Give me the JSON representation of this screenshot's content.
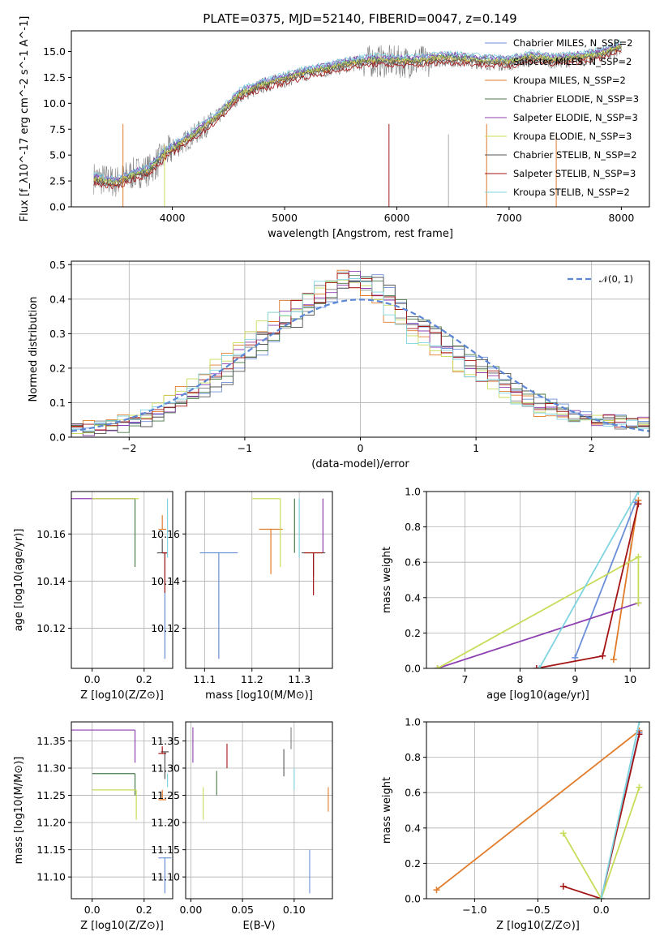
{
  "colors": {
    "obs": "#7f7f7f",
    "Chabrier MILES": "#6a8fd8",
    "Salpeter MILES": "#7f7f7f",
    "Kroupa MILES": "#e07b2a",
    "Chabrier ELODIE": "#4a7a4a",
    "Salpeter ELODIE": "#8e3fb0",
    "Kroupa ELODIE": "#c8dc5a",
    "Chabrier STELIB": "#555555",
    "Salpeter STELIB": "#a31515",
    "Kroupa STELIB": "#7fd4e0",
    "gauss": "#5b87d6"
  },
  "chart_data": [
    {
      "id": "spectrum",
      "type": "line",
      "title": "PLATE=0375, MJD=52140, FIBERID=0047, z=0.149",
      "xlabel": "wavelength [Angstrom, rest frame]",
      "ylabel": "Flux [f_λ10^-17 erg cm^-2 s^-1 A^-1]",
      "xlim": [
        3100,
        8250
      ],
      "ylim": [
        0,
        17
      ],
      "xticks": [
        4000,
        5000,
        6000,
        7000,
        8000
      ],
      "yticks": [
        0.0,
        2.5,
        5.0,
        7.5,
        10.0,
        12.5,
        15.0
      ],
      "continuum_points": {
        "x": [
          3300,
          3500,
          3650,
          3800,
          3950,
          4100,
          4250,
          4400,
          4600,
          4800,
          5000,
          5200,
          5400,
          5600,
          5800,
          6000,
          6200,
          6400,
          6600,
          6800,
          7000,
          7200,
          7400,
          7600,
          7800,
          8000
        ],
        "y": [
          2.8,
          2.4,
          3.2,
          3.6,
          5.2,
          6.2,
          7.4,
          8.6,
          10.8,
          11.7,
          12.3,
          12.9,
          13.3,
          13.8,
          14.1,
          14.0,
          14.0,
          14.3,
          14.2,
          14.0,
          13.9,
          14.4,
          14.1,
          14.3,
          14.6,
          15.4
        ]
      },
      "series": [
        {
          "name": "Chabrier MILES, N_SSP=2"
        },
        {
          "name": "Salpeter MILES, N_SSP=2"
        },
        {
          "name": "Kroupa MILES, N_SSP=2"
        },
        {
          "name": "Chabrier ELODIE, N_SSP=3"
        },
        {
          "name": "Salpeter ELODIE, N_SSP=3"
        },
        {
          "name": "Kroupa ELODIE, N_SSP=3"
        },
        {
          "name": "Chabrier STELIB, N_SSP=2"
        },
        {
          "name": "Salpeter STELIB, N_SSP=3"
        },
        {
          "name": "Kroupa STELIB, N_SSP=2"
        }
      ],
      "legend": "right"
    },
    {
      "id": "residuals",
      "type": "line",
      "xlabel": "(data-model)/error",
      "ylabel": "Normed distribution",
      "xlim": [
        -2.5,
        2.5
      ],
      "ylim": [
        0,
        0.51
      ],
      "xticks": [
        -2,
        -1,
        0,
        1,
        2
      ],
      "yticks": [
        0.0,
        0.1,
        0.2,
        0.3,
        0.4,
        0.5
      ],
      "gaussian_label": "𝒩(0, 1)",
      "bin_edges": [
        -2.5,
        2.5
      ],
      "histogram_profile": [
        0.02,
        0.02,
        0.03,
        0.03,
        0.04,
        0.05,
        0.06,
        0.07,
        0.09,
        0.11,
        0.13,
        0.15,
        0.17,
        0.2,
        0.23,
        0.26,
        0.29,
        0.32,
        0.35,
        0.37,
        0.39,
        0.41,
        0.43,
        0.45,
        0.46,
        0.45,
        0.43,
        0.4,
        0.36,
        0.33,
        0.3,
        0.28,
        0.26,
        0.23,
        0.21,
        0.19,
        0.17,
        0.15,
        0.13,
        0.11,
        0.1,
        0.08,
        0.07,
        0.06,
        0.06,
        0.05,
        0.05,
        0.04,
        0.04,
        0.04
      ],
      "legend": "top-right"
    },
    {
      "id": "age-z",
      "type": "scatter",
      "xlabel": "Z [log10(Z/Z⊙)]",
      "ylabel": "age  [log10(age/yr)]",
      "xlim": [
        -0.08,
        0.31
      ],
      "ylim": [
        10.103,
        10.178
      ],
      "xticks": [
        0.0,
        0.2
      ],
      "yticks": [
        10.12,
        10.14,
        10.16
      ],
      "points": [
        {
          "s": "Chabrier MILES",
          "x": 0.28,
          "y": 10.152,
          "xe": 0.01,
          "yend": 10.107
        },
        {
          "s": "Kroupa MILES",
          "x": 0.27,
          "y": 10.162,
          "xe": 0.015,
          "yend": 10.168
        },
        {
          "s": "Chabrier ELODIE",
          "x": 0.165,
          "y": 10.175,
          "xstart": 0.0,
          "yend": 10.146
        },
        {
          "s": "Salpeter ELODIE",
          "x": 0.165,
          "y": 10.175,
          "xstart": -0.08
        },
        {
          "s": "Kroupa ELODIE",
          "x": 0.18,
          "y": 10.175,
          "xstart": 0.0
        },
        {
          "s": "Chabrier STELIB",
          "x": 0.27,
          "y": 10.152,
          "xe": 0.02,
          "yend": 10.158
        },
        {
          "s": "Salpeter STELIB",
          "x": 0.28,
          "y": 10.152,
          "xe": 0.01,
          "yend": 10.135
        },
        {
          "s": "Kroupa STELIB",
          "x": 0.29,
          "y": 10.175,
          "yend": 10.15
        }
      ]
    },
    {
      "id": "age-mass",
      "type": "scatter",
      "xlabel": "mass [log10(M/M⊙)]",
      "xlim": [
        11.06,
        11.37
      ],
      "ylim": [
        10.103,
        10.178
      ],
      "xticks": [
        11.1,
        11.2,
        11.3
      ],
      "yticks": [
        10.12,
        10.14,
        10.16
      ],
      "points": [
        {
          "s": "Chabrier MILES",
          "x": 11.13,
          "y": 10.152,
          "xe": 0.04,
          "yend": 10.107
        },
        {
          "s": "Kroupa MILES",
          "x": 11.24,
          "y": 10.162,
          "xe": 0.025,
          "yend": 10.143
        },
        {
          "s": "Chabrier ELODIE",
          "x": 11.29,
          "y": 10.175,
          "yend": 10.152
        },
        {
          "s": "Salpeter ELODIE",
          "x": 11.35,
          "y": 10.175,
          "yend": 10.152
        },
        {
          "s": "Kroupa ELODIE",
          "x": 11.26,
          "y": 10.175,
          "xstart": 11.2,
          "yend": 10.146
        },
        {
          "s": "Chabrier STELIB",
          "x": 11.33,
          "y": 10.152,
          "xe": 0.025,
          "yend": 10.142
        },
        {
          "s": "Salpeter STELIB",
          "x": 11.33,
          "y": 10.152,
          "xe": 0.02,
          "yend": 10.134
        },
        {
          "s": "Kroupa STELIB",
          "x": 11.3,
          "y": 10.175,
          "yend": 10.15
        }
      ]
    },
    {
      "id": "weight-age",
      "type": "line",
      "xlabel": "age  [log10(age/yr)]",
      "ylabel": "mass weight",
      "xlim": [
        6.3,
        10.35
      ],
      "ylim": [
        0,
        1
      ],
      "xticks": [
        7,
        8,
        9,
        10
      ],
      "yticks": [
        0.0,
        0.2,
        0.4,
        0.6,
        0.8,
        1.0
      ],
      "series": [
        {
          "s": "Chabrier MILES",
          "x": [
            9.0,
            10.1
          ],
          "y": [
            0.06,
            0.94
          ]
        },
        {
          "s": "Kroupa MILES",
          "x": [
            9.7,
            10.15
          ],
          "y": [
            0.05,
            0.95
          ]
        },
        {
          "s": "Salpeter ELODIE",
          "x": [
            6.5,
            10.15
          ],
          "y": [
            0.0,
            0.37
          ]
        },
        {
          "s": "Kroupa ELODIE",
          "x": [
            6.5,
            10.15,
            10.15
          ],
          "y": [
            0.0,
            0.63,
            0.37
          ]
        },
        {
          "s": "Salpeter STELIB",
          "x": [
            8.3,
            9.5,
            10.15
          ],
          "y": [
            0.0,
            0.07,
            0.93
          ]
        },
        {
          "s": "Kroupa STELIB",
          "x": [
            8.35,
            10.15
          ],
          "y": [
            0.0,
            1.0
          ]
        }
      ]
    },
    {
      "id": "mass-z",
      "type": "scatter",
      "xlabel": "Z [log10(Z/Z⊙)]",
      "ylabel": "mass [log10(M/M⊙)]",
      "xlim": [
        -0.08,
        0.31
      ],
      "ylim": [
        11.06,
        11.385
      ],
      "xticks": [
        0.0,
        0.2
      ],
      "yticks": [
        11.1,
        11.15,
        11.2,
        11.25,
        11.3,
        11.35
      ],
      "points": [
        {
          "s": "Chabrier MILES",
          "x": 0.28,
          "y": 11.135,
          "xe": 0.025,
          "yend": 11.07
        },
        {
          "s": "Kroupa MILES",
          "x": 0.27,
          "y": 11.242,
          "xe": 0.015,
          "yend": 11.26
        },
        {
          "s": "Chabrier ELODIE",
          "x": 0.165,
          "y": 11.29,
          "xstart": 0.0,
          "yend": 11.25
        },
        {
          "s": "Salpeter ELODIE",
          "x": 0.165,
          "y": 11.37,
          "xstart": -0.08,
          "yend": 11.31
        },
        {
          "s": "Kroupa ELODIE",
          "x": 0.17,
          "y": 11.26,
          "xstart": 0.0,
          "yend": 11.205
        },
        {
          "s": "Chabrier STELIB",
          "x": 0.28,
          "y": 11.33,
          "xe": 0.015,
          "yend": 11.28
        },
        {
          "s": "Salpeter STELIB",
          "x": 0.27,
          "y": 11.327,
          "xe": 0.015,
          "yend": 11.34
        },
        {
          "s": "Kroupa STELIB",
          "x": 0.29,
          "y": 11.29,
          "yend": 11.265
        }
      ]
    },
    {
      "id": "mass-ebv",
      "type": "scatter",
      "xlabel": "E(B-V)",
      "xlim": [
        -0.005,
        0.137
      ],
      "ylim": [
        11.06,
        11.385
      ],
      "xticks": [
        0.0,
        0.05,
        0.1
      ],
      "yticks": [
        11.1,
        11.15,
        11.2,
        11.25,
        11.3,
        11.35
      ],
      "points": [
        {
          "s": "Chabrier MILES",
          "y0": 11.07,
          "y1": 11.15,
          "x": 0.115
        },
        {
          "s": "Kroupa MILES",
          "y0": 11.22,
          "y1": 11.265,
          "x": 0.133
        },
        {
          "s": "Chabrier ELODIE",
          "y0": 11.25,
          "y1": 11.295,
          "x": 0.025
        },
        {
          "s": "Salpeter ELODIE",
          "y0": 11.31,
          "y1": 11.375,
          "x": 0.002
        },
        {
          "s": "Kroupa ELODIE",
          "y0": 11.205,
          "y1": 11.265,
          "x": 0.012
        },
        {
          "s": "Chabrier STELIB",
          "y0": 11.285,
          "y1": 11.335,
          "x": 0.09
        },
        {
          "s": "Salpeter STELIB",
          "y0": 11.3,
          "y1": 11.345,
          "x": 0.035
        },
        {
          "s": "Kroupa STELIB",
          "y0": 11.26,
          "y1": 11.3,
          "x": 0.1
        },
        {
          "s": "Salpeter MILES",
          "y0": 11.335,
          "y1": 11.375,
          "x": 0.097
        }
      ]
    },
    {
      "id": "weight-z",
      "type": "line",
      "xlabel": "Z [log10(Z/Z⊙)]",
      "ylabel": "mass weight",
      "xlim": [
        -1.38,
        0.38
      ],
      "ylim": [
        0,
        1
      ],
      "xticks": [
        -1.0,
        -0.5,
        0.0
      ],
      "yticks": [
        0.0,
        0.2,
        0.4,
        0.6,
        0.8,
        1.0
      ],
      "series": [
        {
          "s": "Kroupa MILES",
          "x": [
            -1.3,
            0.3
          ],
          "y": [
            0.05,
            0.95
          ]
        },
        {
          "s": "Chabrier MILES",
          "x": [
            0.0,
            0.3
          ],
          "y": [
            0.0,
            0.94
          ]
        },
        {
          "s": "Salpeter STELIB",
          "x": [
            -0.3,
            0.0,
            0.3
          ],
          "y": [
            0.07,
            0.0,
            0.93
          ]
        },
        {
          "s": "Kroupa ELODIE",
          "x": [
            -0.3,
            0.0,
            0.3
          ],
          "y": [
            0.37,
            0.0,
            0.63
          ]
        },
        {
          "s": "Kroupa STELIB",
          "x": [
            0.0,
            0.3
          ],
          "y": [
            0.0,
            1.0
          ]
        }
      ]
    }
  ]
}
